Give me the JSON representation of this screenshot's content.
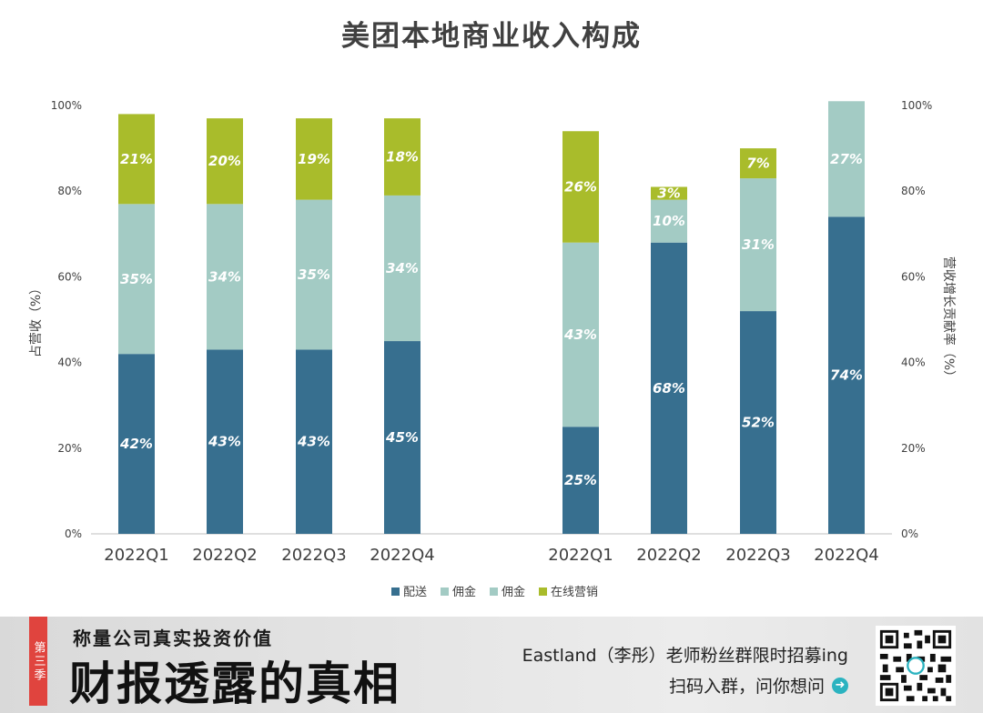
{
  "colors": {
    "delivery": "#376f8f",
    "commission": "#a3cbc4",
    "marketing": "#a9bc2b"
  },
  "chart_data": {
    "type": "bar",
    "stacked": true,
    "title": "美团本地商业收入构成",
    "categories": [
      "2022Q1",
      "2022Q2",
      "2022Q3",
      "2022Q4",
      "2022Q1",
      "2022Q2",
      "2022Q3",
      "2022Q4"
    ],
    "groups": [
      {
        "ylabel": "占营收（%）",
        "axis": "left",
        "ylim": [
          0,
          100
        ],
        "yticks": [
          "0%",
          "20%",
          "40%",
          "60%",
          "80%",
          "100%"
        ],
        "categories": [
          "2022Q1",
          "2022Q2",
          "2022Q3",
          "2022Q4"
        ],
        "series": [
          {
            "name": "配送",
            "values": [
              42,
              43,
              43,
              45
            ],
            "labels": [
              "42%",
              "43%",
              "43%",
              "45%"
            ]
          },
          {
            "name": "佣金",
            "values": [
              35,
              34,
              35,
              34
            ],
            "labels": [
              "35%",
              "34%",
              "35%",
              "34%"
            ]
          },
          {
            "name": "在线营销",
            "values": [
              21,
              20,
              19,
              18
            ],
            "labels": [
              "21%",
              "20%",
              "19%",
              "18%"
            ]
          }
        ]
      },
      {
        "ylabel": "营收增长贡献率（%）",
        "axis": "right",
        "ylim": [
          0,
          100
        ],
        "yticks": [
          "0%",
          "20%",
          "40%",
          "60%",
          "80%",
          "100%"
        ],
        "categories": [
          "2022Q1",
          "2022Q2",
          "2022Q3",
          "2022Q4"
        ],
        "series": [
          {
            "name": "配送",
            "values": [
              25,
              68,
              52,
              74
            ],
            "labels": [
              "25%",
              "68%",
              "52%",
              "74%"
            ]
          },
          {
            "name": "佣金",
            "values": [
              43,
              10,
              31,
              27
            ],
            "labels": [
              "43%",
              "10%",
              "31%",
              "27%"
            ]
          },
          {
            "name": "在线营销",
            "values": [
              26,
              3,
              7,
              0
            ],
            "labels": [
              "26%",
              "3%",
              "7%",
              ""
            ]
          }
        ]
      }
    ],
    "legend": {
      "position": "bottom",
      "entries": [
        "配送",
        "佣金",
        "佣金",
        "在线营销"
      ]
    }
  },
  "banner": {
    "season_tag": "第三季",
    "subtitle": "称量公司真实投资价值",
    "main_title": "财报透露的真相",
    "promo_line1": "Eastland（李彤）老师粉丝群限时招募ing",
    "promo_line2": "扫码入群，问你想问"
  }
}
